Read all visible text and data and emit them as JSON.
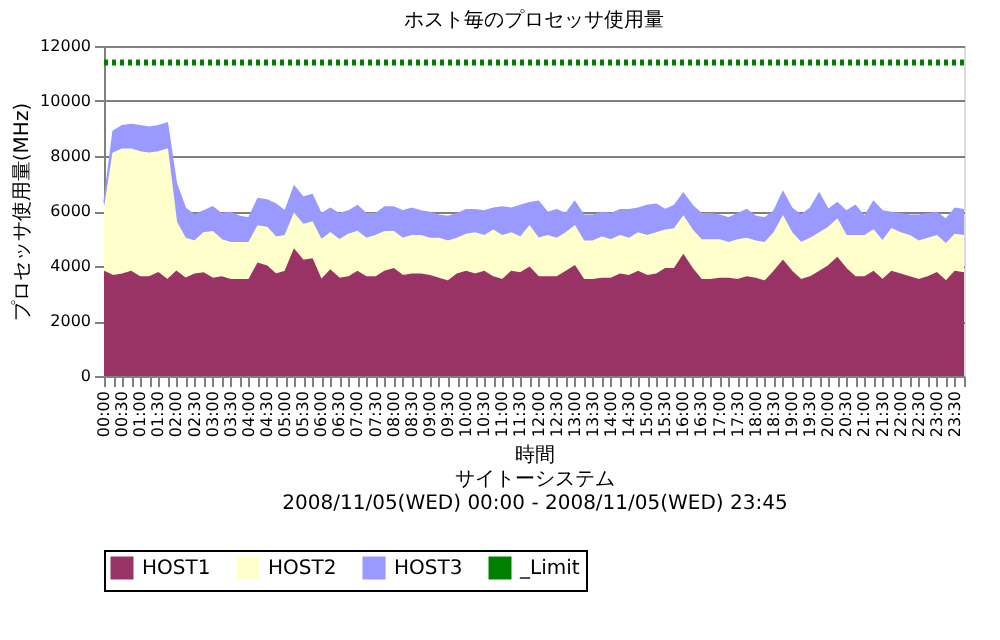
{
  "chart_data": {
    "type": "area",
    "stacked": true,
    "title": "ホスト毎のプロセッサ使用量",
    "xlabel": "時間",
    "ylabel": "プロセッサ使用量(MHz)",
    "annotations": [
      "サイトーシステム",
      "2008/11/05(WED) 00:00 - 2008/11/05(WED) 23:45"
    ],
    "categories": [
      "00:00",
      null,
      "00:30",
      null,
      "01:00",
      null,
      "01:30",
      null,
      "02:00",
      null,
      "02:30",
      null,
      "03:00",
      null,
      "03:30",
      null,
      "04:00",
      null,
      "04:30",
      null,
      "05:00",
      null,
      "05:30",
      null,
      "06:00",
      null,
      "06:30",
      null,
      "07:00",
      null,
      "07:30",
      null,
      "08:00",
      null,
      "08:30",
      null,
      "09:00",
      null,
      "09:30",
      null,
      "10:00",
      null,
      "10:30",
      null,
      "11:00",
      null,
      "11:30",
      null,
      "12:00",
      null,
      "12:30",
      null,
      "13:00",
      null,
      "13:30",
      null,
      "14:00",
      null,
      "14:30",
      null,
      "15:00",
      null,
      "15:30",
      null,
      "16:00",
      null,
      "16:30",
      null,
      "17:00",
      null,
      "17:30",
      null,
      "18:00",
      null,
      "18:30",
      null,
      "19:00",
      null,
      "19:30",
      null,
      "20:00",
      null,
      "20:30",
      null,
      "21:00",
      null,
      "21:30",
      null,
      "22:00",
      null,
      "22:30",
      null,
      "23:00",
      null,
      "23:30",
      null
    ],
    "series": [
      {
        "name": "HOST1",
        "color": "#993366",
        "values": [
          3800,
          3650,
          3700,
          3800,
          3600,
          3600,
          3750,
          3500,
          3800,
          3550,
          3700,
          3750,
          3550,
          3600,
          3500,
          3500,
          3500,
          4100,
          4000,
          3700,
          3800,
          4600,
          4200,
          4250,
          3500,
          3850,
          3550,
          3600,
          3800,
          3600,
          3600,
          3800,
          3900,
          3650,
          3700,
          3700,
          3650,
          3550,
          3450,
          3700,
          3800,
          3700,
          3800,
          3600,
          3500,
          3800,
          3750,
          3950,
          3600,
          3600,
          3600,
          3800,
          4000,
          3500,
          3500,
          3550,
          3550,
          3700,
          3650,
          3800,
          3650,
          3700,
          3900,
          3900,
          4400,
          3900,
          3500,
          3500,
          3550,
          3550,
          3500,
          3600,
          3550,
          3450,
          3800,
          4200,
          3800,
          3500,
          3600,
          3800,
          4000,
          4300,
          3900,
          3600,
          3600,
          3800,
          3500,
          3800,
          3700,
          3600,
          3500,
          3600,
          3750,
          3450,
          3800,
          3750
        ]
      },
      {
        "name": "HOST2",
        "color": "#ffffcc",
        "values": [
          2200,
          4450,
          4550,
          4450,
          4550,
          4500,
          4400,
          4750,
          1800,
          1450,
          1200,
          1450,
          1700,
          1350,
          1350,
          1350,
          1350,
          1350,
          1400,
          1350,
          1300,
          1300,
          1300,
          1350,
          1450,
          1350,
          1400,
          1550,
          1450,
          1400,
          1500,
          1450,
          1350,
          1350,
          1400,
          1400,
          1350,
          1450,
          1450,
          1300,
          1350,
          1500,
          1300,
          1700,
          1600,
          1400,
          1300,
          1500,
          1400,
          1500,
          1400,
          1400,
          1450,
          1400,
          1400,
          1500,
          1400,
          1400,
          1350,
          1400,
          1450,
          1500,
          1400,
          1450,
          1400,
          1400,
          1450,
          1450,
          1400,
          1300,
          1450,
          1400,
          1350,
          1400,
          1400,
          1600,
          1400,
          1350,
          1400,
          1400,
          1400,
          1400,
          1200,
          1500,
          1500,
          1500,
          1400,
          1550,
          1500,
          1500,
          1400,
          1400,
          1350,
          1350,
          1350,
          1350
        ]
      },
      {
        "name": "HOST3",
        "color": "#9999ff",
        "values": [
          300,
          800,
          850,
          900,
          950,
          950,
          950,
          950,
          1400,
          1100,
          950,
          800,
          900,
          950,
          1100,
          950,
          900,
          1000,
          1000,
          1200,
          900,
          1000,
          1000,
          1000,
          950,
          900,
          950,
          850,
          950,
          900,
          800,
          900,
          900,
          1000,
          1000,
          900,
          950,
          850,
          900,
          900,
          900,
          850,
          900,
          800,
          1050,
          900,
          1150,
          850,
          1350,
          850,
          1050,
          700,
          900,
          950,
          950,
          900,
          950,
          950,
          1050,
          900,
          1100,
          1050,
          750,
          850,
          850,
          900,
          950,
          950,
          900,
          900,
          950,
          1050,
          900,
          900,
          800,
          900,
          900,
          1000,
          1100,
          1450,
          650,
          600,
          900,
          1100,
          700,
          1050,
          1100,
          600,
          700,
          750,
          950,
          900,
          850,
          900,
          950,
          950
        ]
      },
      {
        "name": "_Limit",
        "type": "line",
        "color": "#008000",
        "line_style": "dotted",
        "values": [
          11400,
          11400,
          11400,
          11400,
          11400,
          11400,
          11400,
          11400,
          11400,
          11400,
          11400,
          11400,
          11400,
          11400,
          11400,
          11400,
          11400,
          11400,
          11400,
          11400,
          11400,
          11400,
          11400,
          11400,
          11400,
          11400,
          11400,
          11400,
          11400,
          11400,
          11400,
          11400,
          11400,
          11400,
          11400,
          11400,
          11400,
          11400,
          11400,
          11400,
          11400,
          11400,
          11400,
          11400,
          11400,
          11400,
          11400,
          11400,
          11400,
          11400,
          11400,
          11400,
          11400,
          11400,
          11400,
          11400,
          11400,
          11400,
          11400,
          11400,
          11400,
          11400,
          11400,
          11400,
          11400,
          11400,
          11400,
          11400,
          11400,
          11400,
          11400,
          11400,
          11400,
          11400,
          11400,
          11400,
          11400,
          11400,
          11400,
          11400,
          11400,
          11400,
          11400,
          11400,
          11400,
          11400,
          11400,
          11400,
          11400,
          11400,
          11400,
          11400,
          11400,
          11400,
          11400,
          11400
        ]
      }
    ],
    "ylim": [
      0,
      12000
    ],
    "yticks": [
      0,
      2000,
      4000,
      6000,
      8000,
      10000,
      12000
    ],
    "grid": "y",
    "legend": "bottom"
  }
}
